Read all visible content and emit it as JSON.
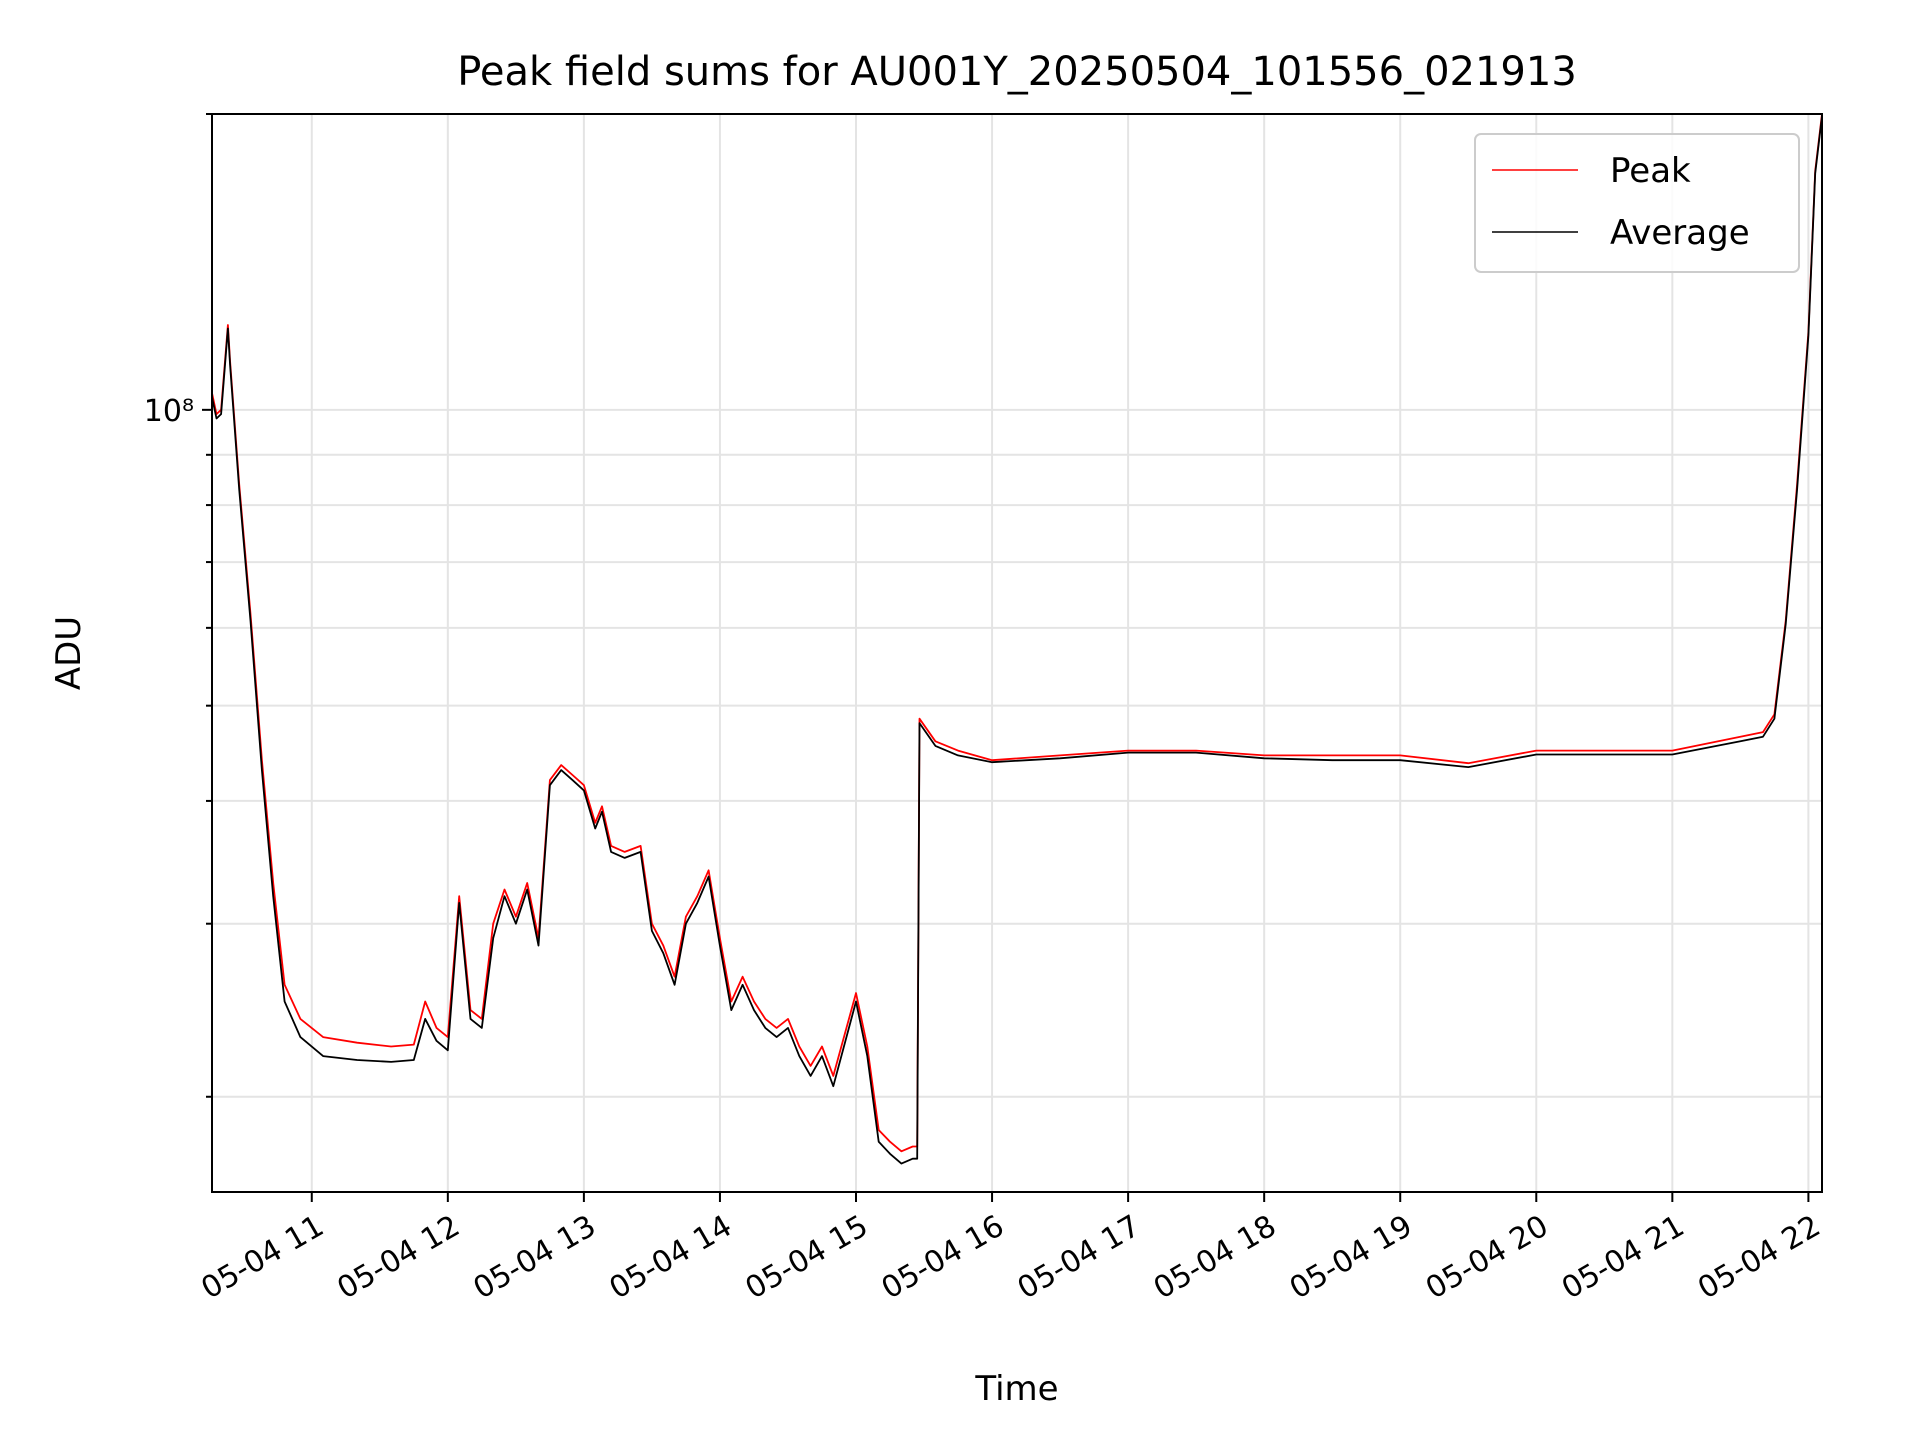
{
  "chart_data": {
    "type": "line",
    "title": "Peak field sums for AU001Y_20250504_101556_021913",
    "xlabel": "Time",
    "ylabel": "ADU",
    "y_scale": "log",
    "ylim": [
      16000000,
      200000000
    ],
    "xlim": [
      "05-04 10:16",
      "05-04 22:06"
    ],
    "x_ticks": [
      "05-04 11",
      "05-04 12",
      "05-04 13",
      "05-04 14",
      "05-04 15",
      "05-04 16",
      "05-04 17",
      "05-04 18",
      "05-04 19",
      "05-04 20",
      "05-04 21",
      "05-04 22"
    ],
    "y_ticks": [
      {
        "value": 100000000,
        "label": "10⁸"
      }
    ],
    "legend": {
      "position": "top-right",
      "entries": [
        "Peak",
        "Average"
      ]
    },
    "grid": true,
    "colors": {
      "Peak": "#ff0000",
      "Average": "#000000"
    },
    "x": [
      "05-04 10:16",
      "05-04 10:18",
      "05-04 10:20",
      "05-04 10:23",
      "05-04 10:24",
      "05-04 10:28",
      "05-04 10:33",
      "05-04 10:38",
      "05-04 10:43",
      "05-04 10:48",
      "05-04 10:55",
      "05-04 11:05",
      "05-04 11:20",
      "05-04 11:35",
      "05-04 11:45",
      "05-04 11:50",
      "05-04 11:55",
      "05-04 12:00",
      "05-04 12:05",
      "05-04 12:10",
      "05-04 12:15",
      "05-04 12:20",
      "05-04 12:25",
      "05-04 12:30",
      "05-04 12:35",
      "05-04 12:40",
      "05-04 12:45",
      "05-04 12:50",
      "05-04 12:55",
      "05-04 13:00",
      "05-04 13:05",
      "05-04 13:08",
      "05-04 13:12",
      "05-04 13:18",
      "05-04 13:25",
      "05-04 13:30",
      "05-04 13:35",
      "05-04 13:40",
      "05-04 13:45",
      "05-04 13:50",
      "05-04 13:55",
      "05-04 14:00",
      "05-04 14:05",
      "05-04 14:10",
      "05-04 14:15",
      "05-04 14:20",
      "05-04 14:25",
      "05-04 14:30",
      "05-04 14:35",
      "05-04 14:40",
      "05-04 14:45",
      "05-04 14:50",
      "05-04 15:00",
      "05-04 15:05",
      "05-04 15:10",
      "05-04 15:15",
      "05-04 15:20",
      "05-04 15:25",
      "05-04 15:27",
      "05-04 15:28",
      "05-04 15:35",
      "05-04 15:45",
      "05-04 16:00",
      "05-04 16:30",
      "05-04 17:00",
      "05-04 17:30",
      "05-04 18:00",
      "05-04 18:30",
      "05-04 19:00",
      "05-04 19:30",
      "05-04 20:00",
      "05-04 20:30",
      "05-04 21:00",
      "05-04 21:30",
      "05-04 21:40",
      "05-04 21:45",
      "05-04 21:50",
      "05-04 21:55",
      "05-04 22:00",
      "05-04 22:03",
      "05-04 22:06"
    ],
    "series": [
      {
        "name": "Peak",
        "values": [
          104000000,
          99000000,
          100000000,
          122000000,
          112000000,
          84000000,
          62000000,
          44000000,
          33000000,
          26000000,
          24000000,
          23000000,
          22700000,
          22500000,
          22600000,
          25000000,
          23500000,
          23000000,
          32000000,
          24500000,
          24000000,
          30000000,
          32500000,
          30500000,
          33000000,
          29000000,
          42000000,
          43500000,
          42500000,
          41500000,
          38000000,
          39500000,
          36000000,
          35500000,
          36000000,
          30000000,
          28500000,
          26500000,
          30500000,
          32000000,
          34000000,
          29000000,
          25000000,
          26500000,
          25000000,
          24000000,
          23500000,
          24000000,
          22500000,
          21500000,
          22500000,
          21000000,
          25500000,
          22500000,
          18500000,
          18000000,
          17600000,
          17800000,
          17800000,
          48500000,
          46000000,
          45000000,
          44000000,
          44500000,
          45000000,
          45000000,
          44500000,
          44500000,
          44500000,
          43700000,
          45000000,
          45000000,
          45000000,
          46500000,
          47000000,
          49000000,
          61000000,
          84000000,
          120000000,
          175000000,
          200000000
        ]
      },
      {
        "name": "Average",
        "values": [
          103000000,
          98000000,
          99000000,
          121000000,
          111000000,
          83000000,
          61000000,
          43000000,
          32000000,
          25000000,
          23000000,
          22000000,
          21800000,
          21700000,
          21800000,
          24000000,
          22800000,
          22300000,
          31500000,
          24000000,
          23500000,
          29000000,
          32000000,
          30000000,
          32500000,
          28500000,
          41500000,
          43000000,
          42000000,
          41000000,
          37500000,
          39000000,
          35500000,
          35000000,
          35500000,
          29500000,
          28000000,
          26000000,
          30000000,
          31500000,
          33500000,
          28500000,
          24500000,
          26000000,
          24500000,
          23500000,
          23000000,
          23500000,
          22000000,
          21000000,
          22000000,
          20500000,
          25000000,
          22000000,
          18000000,
          17500000,
          17100000,
          17300000,
          17300000,
          48000000,
          45500000,
          44500000,
          43800000,
          44200000,
          44800000,
          44800000,
          44200000,
          44000000,
          44000000,
          43300000,
          44600000,
          44600000,
          44600000,
          46000000,
          46500000,
          48500000,
          60500000,
          83000000,
          119000000,
          174000000,
          199000000
        ]
      }
    ]
  }
}
